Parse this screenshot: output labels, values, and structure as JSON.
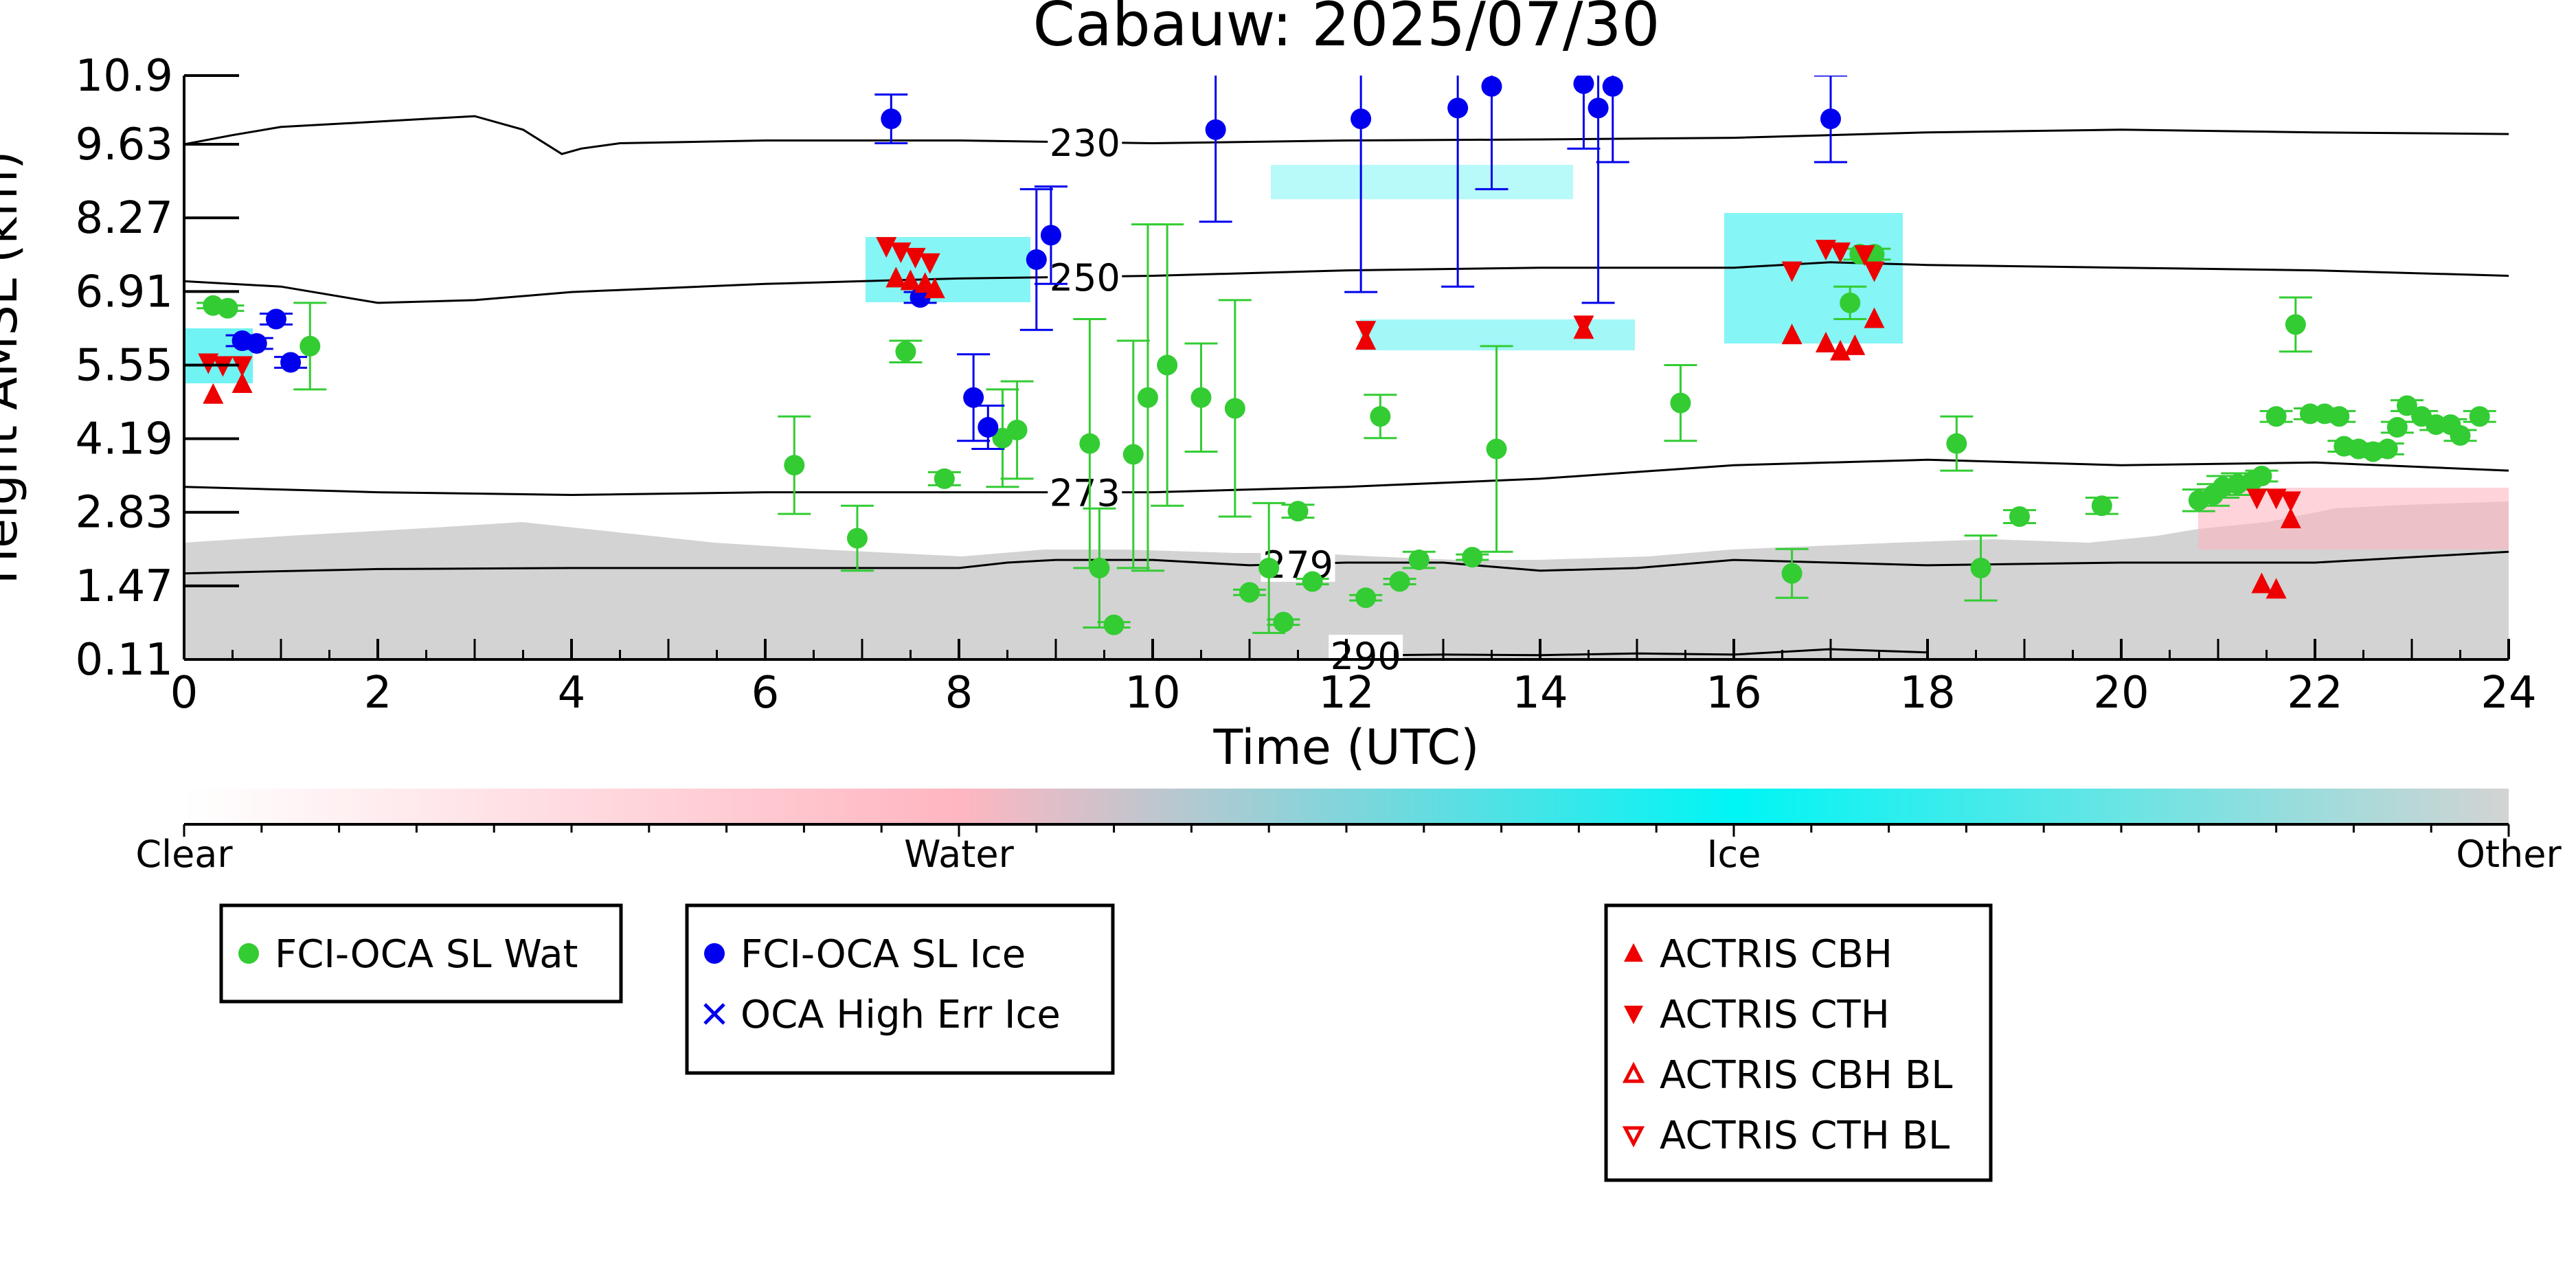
{
  "chart_data": {
    "type": "scatter",
    "title": "Cabauw: 2025/07/30",
    "xlabel": "Time (UTC)",
    "ylabel": "Height AMSL (km)",
    "xlim": [
      0,
      24
    ],
    "ylim": [
      0.11,
      10.9
    ],
    "xticks": [
      "0",
      "2",
      "4",
      "6",
      "8",
      "10",
      "12",
      "14",
      "16",
      "18",
      "20",
      "22",
      "24"
    ],
    "yticks": [
      "0.11",
      "1.47",
      "2.83",
      "4.19",
      "5.55",
      "6.91",
      "8.27",
      "9.63",
      "10.9"
    ],
    "colorbar": {
      "labels": [
        "Clear",
        "Water",
        "Ice",
        "Other"
      ],
      "colors": [
        "#ffffff",
        "#ffb6c1",
        "#00f5f5",
        "#d3d3d3"
      ]
    },
    "contours": [
      {
        "label": "230",
        "x": [
          0,
          0.5,
          1,
          2,
          3,
          3.5,
          3.9,
          4.1,
          4.5,
          6,
          8,
          10,
          12,
          14,
          16,
          18,
          20,
          22,
          24
        ],
        "y": [
          9.63,
          9.8,
          9.95,
          10.05,
          10.15,
          9.9,
          9.45,
          9.55,
          9.65,
          9.7,
          9.7,
          9.65,
          9.7,
          9.72,
          9.75,
          9.85,
          9.9,
          9.85,
          9.82
        ]
      },
      {
        "label": "250",
        "x": [
          0,
          1,
          2,
          3,
          4,
          6,
          8,
          10,
          12,
          14,
          16,
          17,
          18,
          20,
          22,
          24
        ],
        "y": [
          7.1,
          7.0,
          6.7,
          6.75,
          6.9,
          7.05,
          7.15,
          7.2,
          7.3,
          7.35,
          7.35,
          7.45,
          7.4,
          7.35,
          7.3,
          7.2
        ]
      },
      {
        "label": "273",
        "x": [
          0,
          1,
          2,
          4,
          6,
          8,
          10,
          12,
          14,
          16,
          18,
          20,
          22,
          24
        ],
        "y": [
          3.3,
          3.25,
          3.2,
          3.15,
          3.2,
          3.2,
          3.2,
          3.3,
          3.45,
          3.7,
          3.8,
          3.7,
          3.75,
          3.6
        ]
      },
      {
        "label": "279",
        "x": [
          0,
          2,
          4,
          6,
          8,
          8.5,
          9,
          10,
          11,
          12,
          13,
          14,
          15,
          16,
          17,
          18,
          20,
          22,
          24
        ],
        "y": [
          1.7,
          1.78,
          1.8,
          1.8,
          1.8,
          1.9,
          1.95,
          1.95,
          1.85,
          1.9,
          1.9,
          1.75,
          1.8,
          1.95,
          1.9,
          1.85,
          1.9,
          1.9,
          2.1
        ]
      },
      {
        "label": "290",
        "x": [
          11.9,
          13,
          14,
          15,
          16,
          17,
          18
        ],
        "y": [
          0.18,
          0.2,
          0.19,
          0.22,
          0.2,
          0.3,
          0.24
        ]
      }
    ],
    "series": [
      {
        "name": "FCI-OCA SL Wat",
        "color": "#33cc33",
        "marker": "circle",
        "points": [
          [
            0.3,
            6.65,
            0.05
          ],
          [
            0.45,
            6.6,
            0.05
          ],
          [
            1.3,
            5.9,
            0.8
          ],
          [
            6.3,
            3.7,
            0.9
          ],
          [
            6.95,
            2.35,
            0.6
          ],
          [
            7.45,
            5.8,
            0.2
          ],
          [
            7.85,
            3.45,
            0.12
          ],
          [
            8.45,
            4.2,
            0.9
          ],
          [
            8.6,
            4.35,
            0.9
          ],
          [
            9.35,
            4.1,
            2.3
          ],
          [
            9.45,
            1.8,
            1.1
          ],
          [
            9.6,
            0.75,
            0.05
          ],
          [
            9.8,
            3.9,
            2.1
          ],
          [
            9.95,
            4.95,
            3.2
          ],
          [
            10.15,
            5.55,
            2.6
          ],
          [
            10.5,
            4.95,
            1.0
          ],
          [
            10.85,
            4.75,
            2.0
          ],
          [
            11.0,
            1.35,
            0.05
          ],
          [
            11.2,
            1.8,
            1.2
          ],
          [
            11.35,
            0.8,
            0.05
          ],
          [
            11.5,
            2.85,
            0.12
          ],
          [
            11.65,
            1.55,
            0.05
          ],
          [
            12.2,
            1.25,
            0.05
          ],
          [
            12.35,
            4.6,
            0.4
          ],
          [
            12.55,
            1.55,
            0.05
          ],
          [
            12.75,
            1.95,
            0.15
          ],
          [
            13.3,
            2.0,
            0.05
          ],
          [
            13.55,
            4.0,
            1.9
          ],
          [
            15.45,
            4.85,
            0.7
          ],
          [
            16.6,
            1.7,
            0.45
          ],
          [
            17.2,
            6.7,
            0.3
          ],
          [
            17.3,
            7.6,
            0.1
          ],
          [
            17.45,
            7.6,
            0.1
          ],
          [
            18.3,
            4.1,
            0.5
          ],
          [
            18.55,
            1.8,
            0.6
          ],
          [
            18.95,
            2.75,
            0.12
          ],
          [
            19.8,
            2.95,
            0.15
          ],
          [
            20.8,
            3.05,
            0.2
          ],
          [
            20.95,
            3.15,
            0.2
          ],
          [
            21.05,
            3.3,
            0.2
          ],
          [
            21.2,
            3.35,
            0.2
          ],
          [
            21.35,
            3.4,
            0.15
          ],
          [
            21.45,
            3.5,
            0.1
          ],
          [
            21.6,
            4.6,
            0.1
          ],
          [
            21.8,
            6.3,
            0.5
          ],
          [
            21.95,
            4.65,
            0.1
          ],
          [
            22.1,
            4.65,
            0.1
          ],
          [
            22.25,
            4.6,
            0.1
          ],
          [
            22.3,
            4.05,
            0.1
          ],
          [
            22.45,
            4.0,
            0.1
          ],
          [
            22.6,
            3.95,
            0.1
          ],
          [
            22.75,
            4.0,
            0.1
          ],
          [
            22.85,
            4.4,
            0.1
          ],
          [
            22.95,
            4.8,
            0.1
          ],
          [
            23.1,
            4.6,
            0.1
          ],
          [
            23.25,
            4.45,
            0.1
          ],
          [
            23.4,
            4.45,
            0.1
          ],
          [
            23.5,
            4.25,
            0.1
          ],
          [
            23.7,
            4.6,
            0.1
          ]
        ]
      },
      {
        "name": "FCI-OCA SL Ice",
        "color": "#0000ee",
        "marker": "circle",
        "points": [
          [
            0.95,
            6.4,
            0.1
          ],
          [
            0.6,
            6.0,
            0.1
          ],
          [
            0.75,
            5.95,
            0.1
          ],
          [
            1.1,
            5.6,
            0.1
          ],
          [
            7.3,
            10.1,
            0.45
          ],
          [
            7.6,
            6.8,
            0.1
          ],
          [
            8.15,
            4.95,
            0.8
          ],
          [
            8.3,
            4.4,
            0.4
          ],
          [
            8.8,
            7.5,
            1.3
          ],
          [
            8.95,
            7.95,
            0.9
          ],
          [
            10.65,
            9.9,
            1.7
          ],
          [
            12.15,
            10.1,
            3.2
          ],
          [
            13.15,
            10.3,
            3.3
          ],
          [
            13.5,
            10.7,
            1.9
          ],
          [
            14.45,
            10.75,
            1.2
          ],
          [
            14.6,
            10.3,
            3.6
          ],
          [
            14.75,
            10.7,
            1.4
          ],
          [
            17.0,
            10.1,
            0.8
          ]
        ]
      },
      {
        "name": "OCA High Err Ice",
        "color": "#0000ee",
        "marker": "x",
        "points": []
      },
      {
        "name": "ACTRIS CBH",
        "color": "#ee0000",
        "marker": "triangle-up",
        "points": [
          [
            0.3,
            5.0
          ],
          [
            0.6,
            5.2
          ],
          [
            7.35,
            7.15
          ],
          [
            7.5,
            7.1
          ],
          [
            7.65,
            7.05
          ],
          [
            7.75,
            6.95
          ],
          [
            12.2,
            6.0
          ],
          [
            14.45,
            6.2
          ],
          [
            16.6,
            6.1
          ],
          [
            16.95,
            5.95
          ],
          [
            17.1,
            5.8
          ],
          [
            17.25,
            5.9
          ],
          [
            17.45,
            6.4
          ],
          [
            21.45,
            1.5
          ],
          [
            21.6,
            1.4
          ],
          [
            21.75,
            2.7
          ]
        ]
      },
      {
        "name": "ACTRIS CTH",
        "color": "#ee0000",
        "marker": "triangle-down",
        "points": [
          [
            0.25,
            5.6
          ],
          [
            0.4,
            5.55
          ],
          [
            0.6,
            5.55
          ],
          [
            7.25,
            7.75
          ],
          [
            7.4,
            7.65
          ],
          [
            7.55,
            7.55
          ],
          [
            7.7,
            7.45
          ],
          [
            12.2,
            6.2
          ],
          [
            14.45,
            6.3
          ],
          [
            16.6,
            7.3
          ],
          [
            16.95,
            7.7
          ],
          [
            17.1,
            7.65
          ],
          [
            17.35,
            7.6
          ],
          [
            17.45,
            7.3
          ],
          [
            21.4,
            3.1
          ],
          [
            21.6,
            3.1
          ],
          [
            21.75,
            3.05
          ]
        ]
      },
      {
        "name": "ACTRIS CBH BL",
        "color": "#ee0000",
        "marker": "triangle-up-open",
        "points": []
      },
      {
        "name": "ACTRIS CTH BL",
        "color": "#ee0000",
        "marker": "triangle-down-open",
        "points": []
      }
    ],
    "legend": [
      {
        "entries": [
          "FCI-OCA SL Wat"
        ]
      },
      {
        "entries": [
          "FCI-OCA SL Ice",
          "OCA High Err Ice"
        ]
      },
      {
        "entries": [
          "ACTRIS CBH",
          "ACTRIS CTH",
          "ACTRIS CBH BL",
          "ACTRIS CTH BL"
        ]
      }
    ]
  }
}
